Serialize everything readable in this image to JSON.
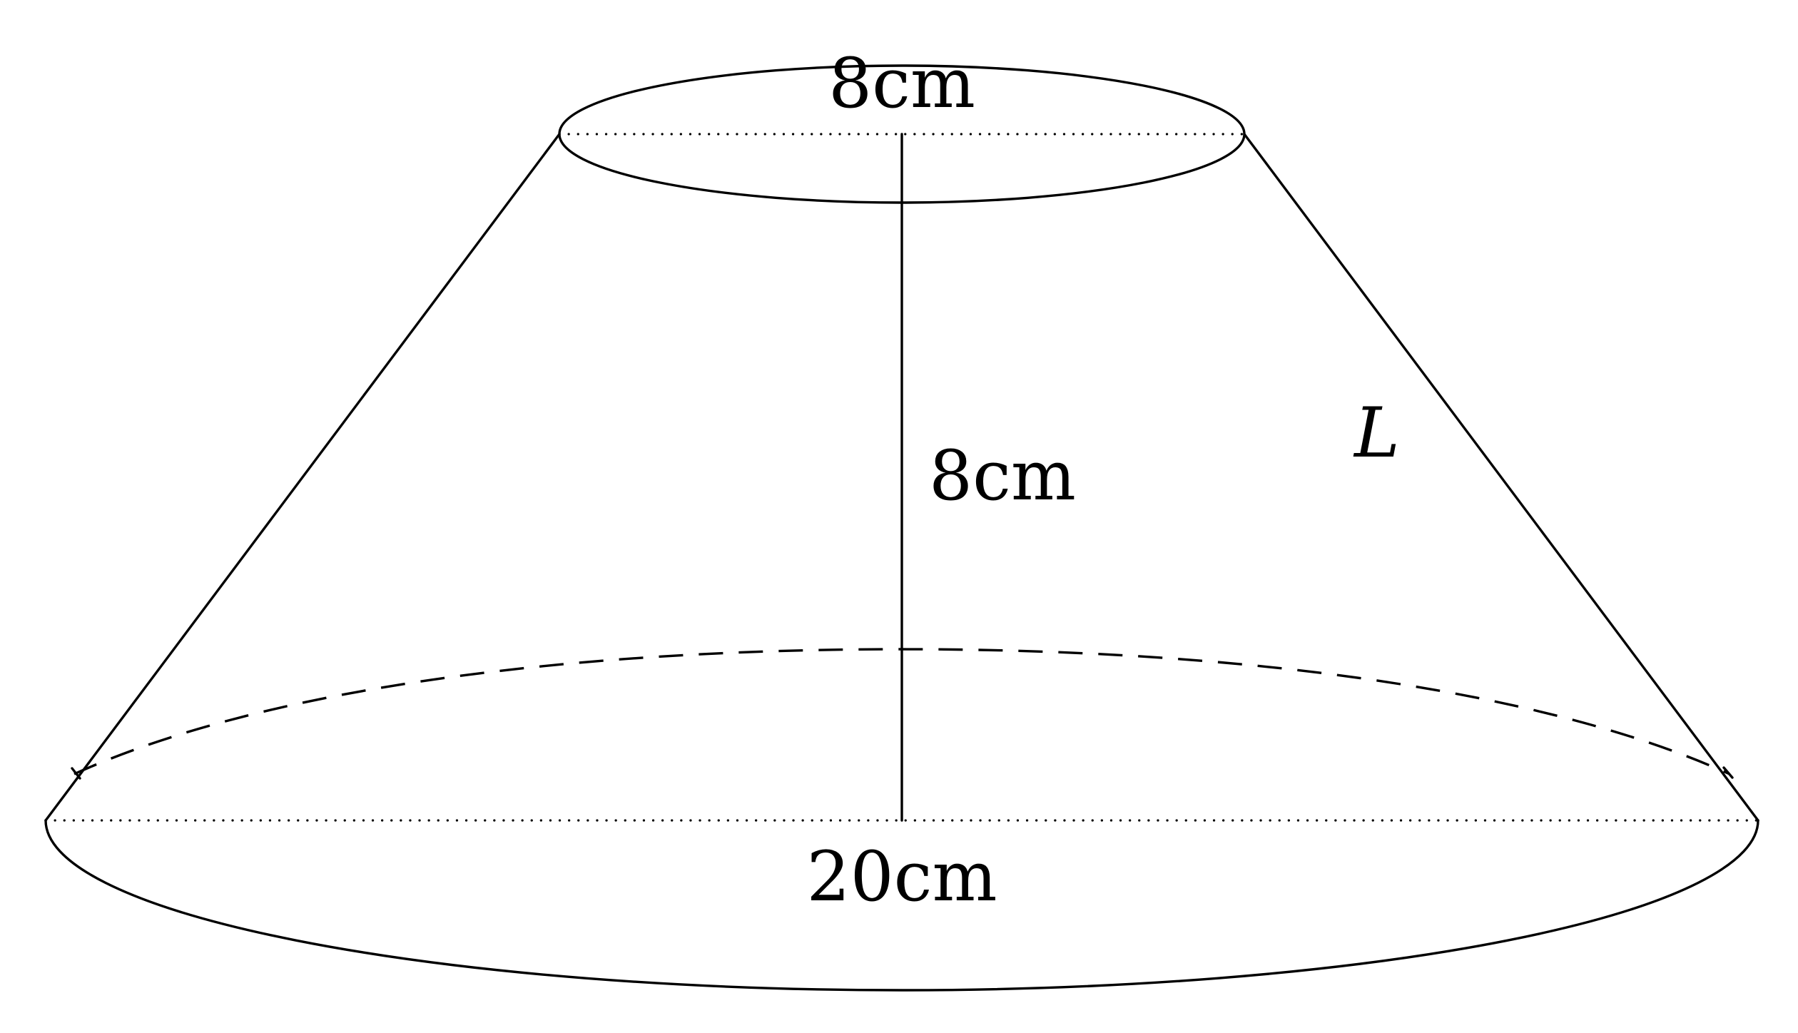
{
  "labels": {
    "top_diameter": "8cm",
    "height": "8cm",
    "bottom_diameter": "20cm",
    "slant": "L"
  }
}
